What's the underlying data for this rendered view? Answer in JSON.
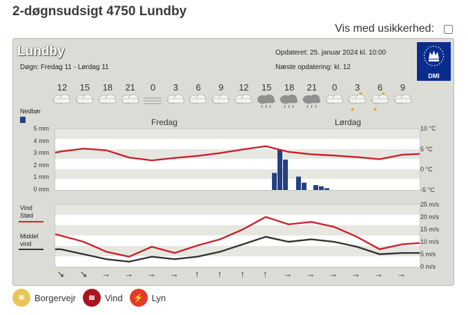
{
  "page": {
    "title": "2-døgnsudsigt 4750 Lundby"
  },
  "uncertainty": {
    "label": "Vis med usikkerhed:"
  },
  "panel": {
    "location": "Lundby",
    "meta_left": "Døgn: Fredag 11 - Lørdag 11",
    "meta_right_1": "Opdateret: 25. januar 2024 kl. 10:00",
    "meta_right_2": "Næste opdatering: kl. 12",
    "logo_text": "DMI",
    "hours": [
      "12",
      "15",
      "18",
      "21",
      "0",
      "3",
      "6",
      "9",
      "12",
      "15",
      "18",
      "21",
      "0",
      "3",
      "6",
      "9"
    ],
    "day_labels": [
      "Fredag",
      "Lørdag"
    ],
    "nedbor_label": "Nedbør",
    "precip_axis": [
      "5 mm",
      "4 mm",
      "3 mm",
      "2 mm",
      "1 mm",
      "0 mm"
    ],
    "temp_axis": [
      "10 °C",
      "5 °C",
      "0 °C",
      "-5 °C"
    ],
    "wind_axis": [
      "25 m/s",
      "20 m/s",
      "15 m/s",
      "10 m/s",
      "5 m/s",
      "0 m/s"
    ],
    "wind_label_1": "Vind",
    "wind_label_2": "Stød",
    "wind_label_3": "Middel",
    "wind_label_4": "vind",
    "arrows": [
      "↘",
      "↘",
      "→",
      "→",
      "→",
      "→",
      "↑",
      "↑",
      "↑",
      "↑",
      "→",
      "→",
      "→",
      "→",
      "→",
      "→"
    ]
  },
  "legend": [
    {
      "label": "Borgervejr",
      "color": "#e9c45a",
      "icon": "sun-icon"
    },
    {
      "label": "Vind",
      "color": "#a8151d",
      "icon": "wind-icon"
    },
    {
      "label": "Lyn",
      "color": "#e23b2a",
      "icon": "lightning-icon"
    }
  ],
  "chart_data": {
    "type": "line",
    "x": [
      0,
      1,
      2,
      3,
      4,
      5,
      6,
      7,
      8,
      9,
      10,
      11,
      12,
      13,
      14,
      15
    ],
    "series": [
      {
        "name": "Temperatur",
        "values": [
          4.5,
          5.2,
          4.8,
          3.0,
          2.3,
          2.9,
          3.4,
          4.1,
          5.0,
          5.8,
          4.4,
          3.8,
          3.5,
          3.1,
          2.6,
          3.7
        ]
      },
      {
        "name": "Stød",
        "values": [
          12.5,
          10,
          6,
          4,
          8,
          5.5,
          8.5,
          11,
          15,
          20,
          17,
          18,
          16,
          12,
          7,
          9
        ]
      },
      {
        "name": "Middel vind",
        "values": [
          7,
          5,
          3,
          2,
          4,
          3,
          4,
          6,
          9,
          12,
          10,
          11,
          10,
          8,
          5,
          5.5
        ]
      }
    ],
    "precipitation": [
      0,
      0,
      0,
      0,
      0,
      0,
      0,
      0,
      0,
      3.2,
      2.2,
      1.1,
      0.6,
      0.3,
      0.2,
      0
    ]
  }
}
